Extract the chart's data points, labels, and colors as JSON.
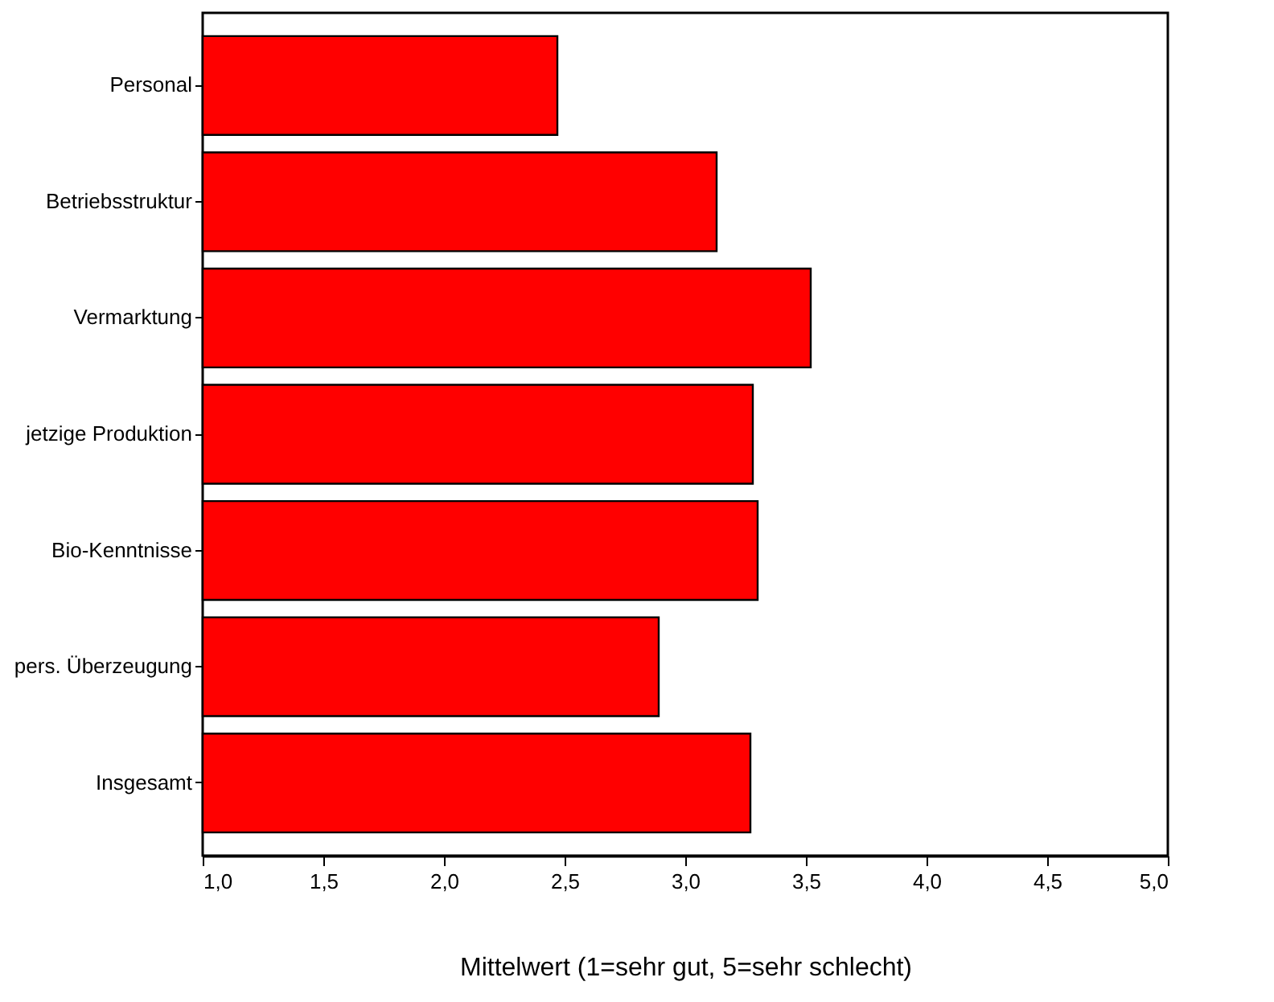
{
  "chart_data": {
    "type": "bar",
    "orientation": "horizontal",
    "xlabel": "Mittelwert (1=sehr gut, 5=sehr schlecht)",
    "categories": [
      "Personal",
      "Betriebsstruktur",
      "Vermarktung",
      "jetzige Produktion",
      "Bio-Kenntnisse",
      "pers. Überzeugung",
      "Insgesamt"
    ],
    "values": [
      2.47,
      3.13,
      3.52,
      3.28,
      3.3,
      2.89,
      3.27
    ],
    "color": "#ff0000",
    "xlim": [
      1,
      5
    ],
    "xticks": [
      {
        "value": 1,
        "label": "1,0"
      },
      {
        "value": 1.5,
        "label": "1,5"
      },
      {
        "value": 2,
        "label": "2,0"
      },
      {
        "value": 2.5,
        "label": "2,5"
      },
      {
        "value": 3,
        "label": "3,0"
      },
      {
        "value": 3.5,
        "label": "3,5"
      },
      {
        "value": 4,
        "label": "4,0"
      },
      {
        "value": 4.5,
        "label": "4,5"
      },
      {
        "value": 5,
        "label": "5,0"
      }
    ],
    "grid": false
  }
}
